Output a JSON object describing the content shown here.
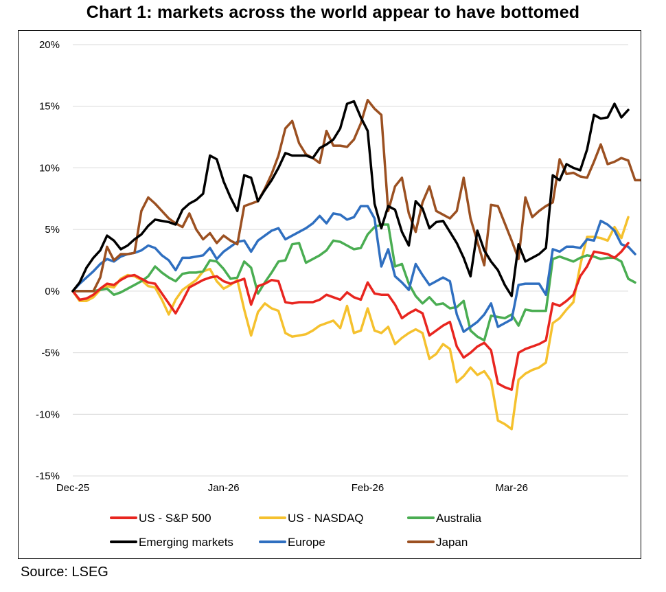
{
  "title": "Chart 1: markets across the world appear to have bottomed",
  "source": "Source: LSEG",
  "chart_data": {
    "type": "line",
    "title": "Chart 1: markets across the world appear to have bottomed",
    "ylim": [
      -15,
      20
    ],
    "y_ticks": [
      20,
      15,
      10,
      5,
      0,
      -5,
      -10,
      -15
    ],
    "y_tick_labels": [
      "20%",
      "15%",
      "10%",
      "5%",
      "0%",
      "-5%",
      "-10%",
      "-15%"
    ],
    "x_tick_labels": [
      "Dec-25",
      "Jan-26",
      "Feb-26",
      "Mar-26"
    ],
    "x_tick_index": [
      0,
      22,
      43,
      64
    ],
    "grid": "horizontal",
    "legend_position": "bottom",
    "series": [
      {
        "name": "US - S&P 500",
        "color": "#e8251f",
        "values": [
          0,
          -0.7,
          -0.6,
          -0.3,
          0.2,
          0.6,
          0.5,
          0.9,
          1.2,
          1.3,
          1.0,
          0.7,
          0.6,
          -0.2,
          -1.0,
          -1.8,
          -0.8,
          0.3,
          0.6,
          0.9,
          1.1,
          1.2,
          0.8,
          0.6,
          0.8,
          1.0,
          -1.1,
          0.4,
          0.6,
          0.9,
          0.8,
          -0.9,
          -1.0,
          -0.9,
          -0.9,
          -0.9,
          -0.7,
          -0.3,
          -0.5,
          -0.7,
          -0.1,
          -0.5,
          -0.7,
          0.7,
          -0.2,
          -0.3,
          -0.3,
          -1.1,
          -2.2,
          -1.8,
          -1.5,
          -1.8,
          -3.6,
          -3.2,
          -2.8,
          -2.5,
          -4.5,
          -5.4,
          -5.0,
          -4.5,
          -4.2,
          -4.8,
          -7.5,
          -7.8,
          -8.0,
          -5.0,
          -4.7,
          -4.5,
          -4.3,
          -4.0,
          -1.0,
          -1.2,
          -0.8,
          -0.3,
          1.2,
          2.0,
          3.2,
          3.1,
          3.0,
          2.7,
          3.2,
          3.9
        ]
      },
      {
        "name": "US - NASDAQ",
        "color": "#f5c12e",
        "values": [
          0,
          -0.8,
          -0.8,
          -0.5,
          0.1,
          0.4,
          0.3,
          1.0,
          1.3,
          1.2,
          0.9,
          0.4,
          0.3,
          -0.7,
          -1.9,
          -0.7,
          0.1,
          0.5,
          0.9,
          1.6,
          1.8,
          0.8,
          0.2,
          0.5,
          0.9,
          -1.5,
          -3.6,
          -1.7,
          -1.0,
          -1.4,
          -1.6,
          -3.4,
          -3.7,
          -3.6,
          -3.5,
          -3.2,
          -2.8,
          -2.6,
          -2.4,
          -3.0,
          -1.2,
          -3.4,
          -3.2,
          -1.4,
          -3.2,
          -3.4,
          -2.9,
          -4.3,
          -3.8,
          -3.4,
          -3.1,
          -3.4,
          -5.5,
          -5.1,
          -4.3,
          -4.7,
          -7.4,
          -6.9,
          -6.2,
          -6.8,
          -6.5,
          -7.3,
          -10.5,
          -10.8,
          -11.2,
          -7.2,
          -6.7,
          -6.4,
          -6.2,
          -5.8,
          -2.6,
          -2.2,
          -1.5,
          -0.9,
          2.1,
          4.4,
          4.4,
          4.3,
          4.1,
          5.2,
          4.3,
          6.0
        ]
      },
      {
        "name": "Australia",
        "color": "#4aad52",
        "values": [
          0,
          0,
          0,
          0,
          0.1,
          0.2,
          -0.3,
          -0.1,
          0.2,
          0.5,
          0.8,
          1.2,
          2.0,
          1.5,
          1.1,
          0.8,
          1.4,
          1.5,
          1.5,
          1.6,
          2.5,
          2.4,
          1.8,
          1.0,
          1.1,
          2.4,
          1.9,
          -0.2,
          0.7,
          1.5,
          2.4,
          2.5,
          3.8,
          3.9,
          2.3,
          2.6,
          2.9,
          3.3,
          4.1,
          4.0,
          3.7,
          3.4,
          3.5,
          4.6,
          5.2,
          5.4,
          5.4,
          2.0,
          2.2,
          0.6,
          -0.4,
          -1.0,
          -0.5,
          -1.1,
          -1.0,
          -1.4,
          -1.3,
          -0.8,
          -3.2,
          -3.7,
          -4.0,
          -2.0,
          -2.1,
          -2.2,
          -1.9,
          -2.8,
          -1.5,
          -1.6,
          -1.6,
          -1.6,
          2.6,
          2.8,
          2.6,
          2.4,
          2.7,
          2.9,
          2.8,
          2.6,
          2.7,
          2.7,
          2.4,
          1.0,
          0.7
        ]
      },
      {
        "name": "Emerging markets",
        "color": "#000000",
        "values": [
          0,
          0.7,
          1.9,
          2.7,
          3.3,
          4.5,
          4.1,
          3.4,
          3.7,
          4.2,
          4.6,
          5.3,
          5.8,
          5.7,
          5.6,
          5.4,
          6.6,
          7.1,
          7.4,
          7.9,
          11.0,
          10.7,
          8.9,
          7.6,
          6.5,
          9.4,
          9.2,
          7.3,
          8.2,
          9.0,
          10.0,
          11.2,
          11.0,
          11.0,
          11.0,
          10.8,
          11.6,
          11.9,
          12.3,
          13.2,
          15.2,
          15.4,
          14.1,
          13.0,
          7.1,
          5.1,
          6.9,
          6.6,
          4.8,
          3.7,
          7.3,
          6.7,
          5.1,
          5.6,
          5.7,
          4.8,
          3.9,
          2.7,
          1.2,
          4.9,
          3.3,
          2.4,
          1.7,
          0.5,
          -0.4,
          3.8,
          2.4,
          2.7,
          3.0,
          3.5,
          9.4,
          9.0,
          10.3,
          10.0,
          9.8,
          11.5,
          14.3,
          14.0,
          14.1,
          15.2,
          14.1,
          14.7
        ]
      },
      {
        "name": "Europe",
        "color": "#2f6fc0",
        "values": [
          0,
          0.6,
          1.1,
          1.6,
          2.2,
          2.6,
          2.4,
          2.8,
          3.0,
          3.1,
          3.3,
          3.7,
          3.5,
          2.9,
          2.5,
          1.7,
          2.7,
          2.7,
          2.8,
          2.9,
          3.5,
          2.6,
          3.2,
          3.6,
          4.0,
          4.1,
          3.2,
          4.1,
          4.5,
          4.9,
          5.1,
          4.2,
          4.5,
          4.8,
          5.1,
          5.5,
          6.1,
          5.5,
          6.3,
          6.2,
          5.8,
          6.0,
          6.9,
          6.9,
          5.9,
          2.0,
          3.4,
          1.2,
          0.7,
          0.1,
          2.2,
          1.3,
          0.5,
          0.8,
          1.1,
          0.8,
          -1.9,
          -3.3,
          -2.9,
          -2.5,
          -1.9,
          -1.0,
          -2.9,
          -2.6,
          -2.3,
          0.5,
          0.6,
          0.6,
          0.6,
          -0.3,
          3.4,
          3.2,
          3.6,
          3.6,
          3.5,
          4.2,
          4.1,
          5.7,
          5.4,
          4.9,
          3.8,
          3.6,
          3.0
        ]
      },
      {
        "name": "Japan",
        "color": "#9b5021",
        "values": [
          0,
          0,
          0,
          0,
          1.1,
          3.6,
          2.5,
          3.0,
          3.0,
          3.1,
          6.5,
          7.6,
          7.1,
          6.5,
          5.9,
          5.5,
          5.2,
          6.3,
          5.0,
          4.2,
          4.7,
          3.9,
          4.5,
          4.1,
          3.8,
          6.9,
          7.1,
          7.3,
          8.3,
          9.5,
          11.0,
          13.2,
          13.8,
          12.0,
          11.1,
          10.8,
          10.4,
          13.0,
          11.8,
          11.8,
          11.7,
          12.3,
          13.6,
          15.5,
          14.8,
          14.3,
          6.5,
          8.5,
          9.2,
          6.3,
          4.8,
          7.2,
          8.5,
          6.5,
          6.2,
          5.9,
          6.5,
          9.2,
          5.9,
          4.0,
          2.1,
          7.0,
          6.9,
          5.5,
          4.1,
          2.6,
          7.6,
          6.0,
          6.5,
          6.9,
          7.2,
          10.7,
          9.5,
          9.6,
          9.3,
          9.2,
          10.5,
          11.9,
          10.3,
          10.5,
          10.8,
          10.6,
          9.0,
          9.0
        ]
      }
    ]
  }
}
